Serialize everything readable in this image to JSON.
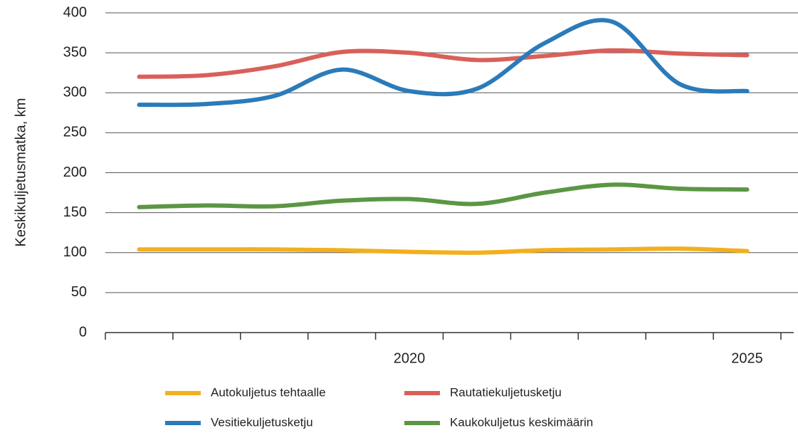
{
  "chart_data": {
    "type": "line",
    "y_label": "Keskikuljetusmatka, km",
    "categories": [
      null,
      null,
      null,
      null,
      "2020",
      null,
      null,
      null,
      null,
      "2025"
    ],
    "series": [
      {
        "name": "Autokuljetus tehtaalle",
        "color": "#f2b01e",
        "values": [
          104,
          104,
          104,
          103,
          101,
          100,
          103,
          104,
          105,
          102
        ]
      },
      {
        "name": "Rautatiekuljetusketju",
        "color": "#d9605a",
        "values": [
          320,
          322,
          333,
          351,
          350,
          341,
          346,
          353,
          349,
          347
        ]
      },
      {
        "name": "Vesitiekuljetusketju",
        "color": "#2b7bba",
        "values": [
          285,
          286,
          296,
          329,
          302,
          305,
          362,
          389,
          311,
          302
        ]
      },
      {
        "name": "Kaukokuljetus keskimäärin",
        "color": "#5c9644",
        "values": [
          157,
          159,
          158,
          165,
          167,
          161,
          175,
          185,
          180,
          179
        ]
      }
    ],
    "ylim": [
      0,
      400
    ],
    "yticks": [
      0,
      50,
      100,
      150,
      200,
      250,
      300,
      350,
      400
    ],
    "grid": true
  }
}
